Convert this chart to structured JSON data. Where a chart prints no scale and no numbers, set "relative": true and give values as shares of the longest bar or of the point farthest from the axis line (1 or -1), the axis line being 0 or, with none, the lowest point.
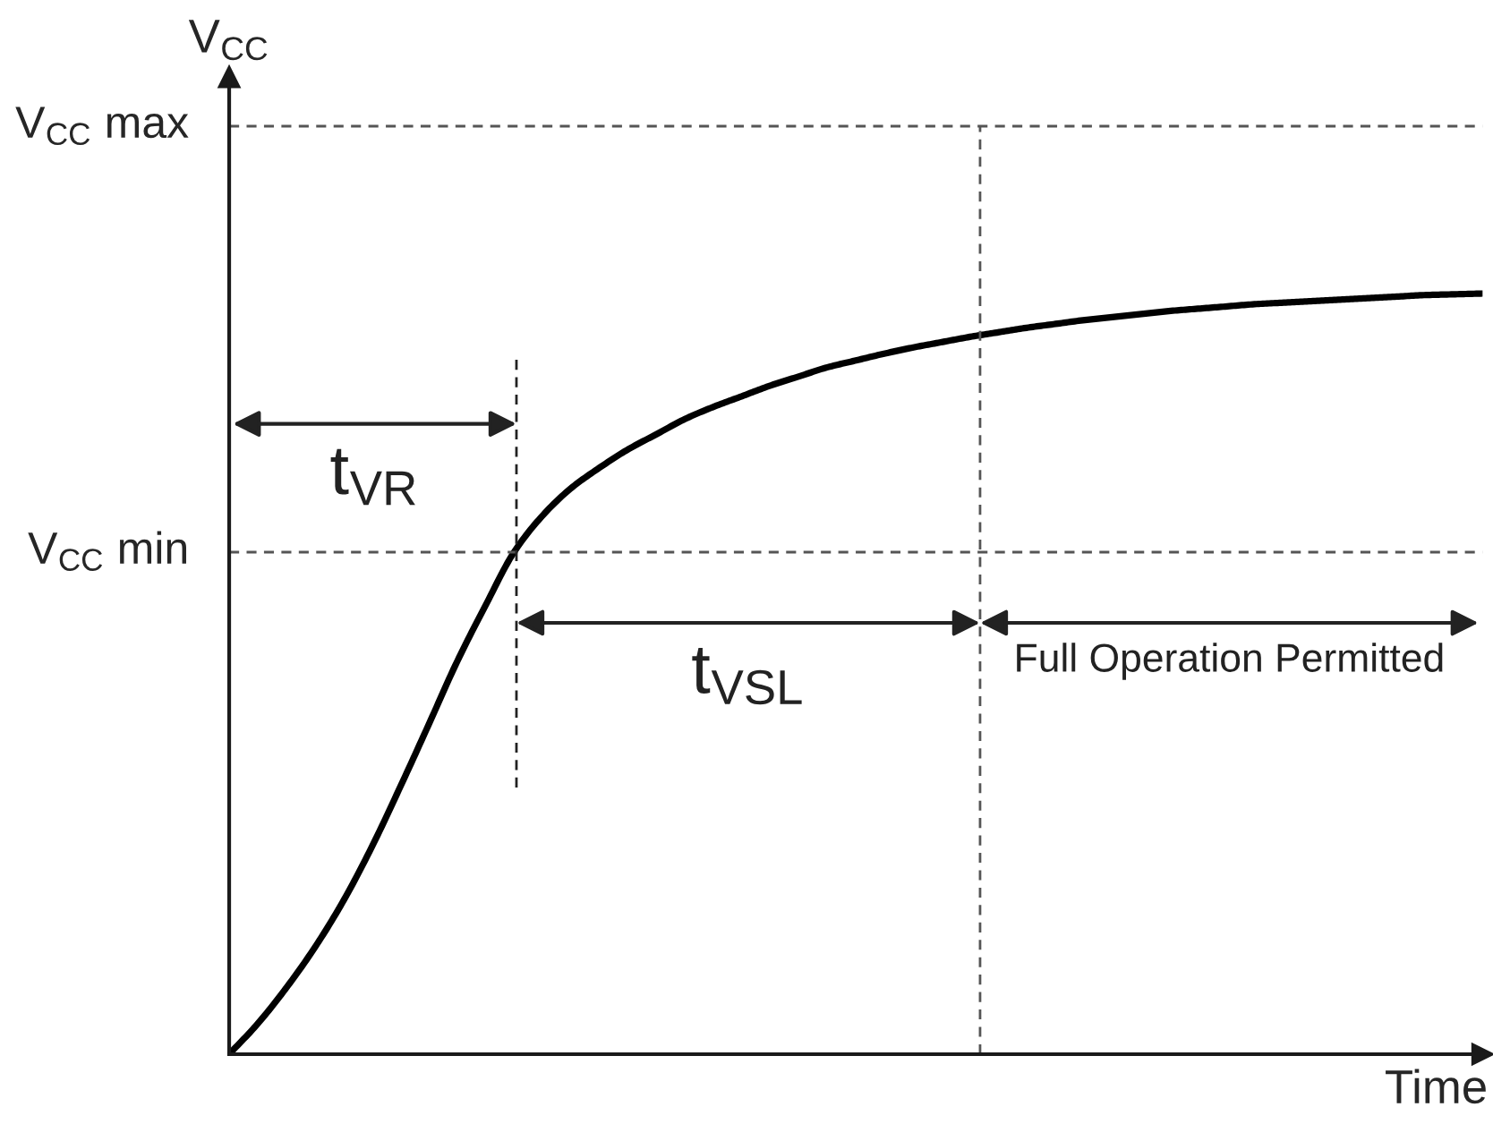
{
  "chart_data": {
    "type": "line",
    "relative": true,
    "xlabel": "Time",
    "ylabel": "V$_{CC}$",
    "categories": [
      null,
      null,
      null,
      null,
      null,
      null,
      null,
      null,
      null,
      null,
      null,
      null,
      null,
      null,
      null,
      null,
      null,
      null,
      null,
      null,
      null,
      null,
      null,
      null,
      null,
      null,
      null,
      null,
      null,
      null,
      null,
      null,
      null,
      null,
      null,
      null,
      null,
      null,
      null,
      null,
      null,
      null,
      null,
      null,
      null
    ],
    "series": [
      {
        "color": "#000000",
        "values": [
          0,
          0.04,
          0.087,
          0.14,
          0.201,
          0.272,
          0.351,
          0.433,
          0.516,
          0.59,
          0.66,
          0.708,
          0.744,
          0.771,
          0.795,
          0.815,
          0.835,
          0.851,
          0.865,
          0.879,
          0.891,
          0.903,
          0.912,
          0.921,
          0.929,
          0.936,
          0.943,
          0.949,
          0.955,
          0.96,
          0.965,
          0.969,
          0.973,
          0.977,
          0.98,
          0.983,
          0.986,
          0.988,
          0.99,
          0.992,
          0.994,
          0.996,
          0.998,
          0.999,
          1
        ]
      }
    ],
    "ref_lines": [
      {
        "axis": "y",
        "value": 1.22,
        "label": "V$_{CC}$ max",
        "color": "#555555",
        "line_style": "dashed"
      },
      {
        "axis": "y",
        "value": 0.66,
        "label": "V$_{CC}$ min",
        "color": "#555555",
        "line_style": "dashed"
      }
    ],
    "annotations": [
      "t$_{VR}$",
      "t$_{VSL}$",
      "Full Operation Permitted"
    ]
  }
}
